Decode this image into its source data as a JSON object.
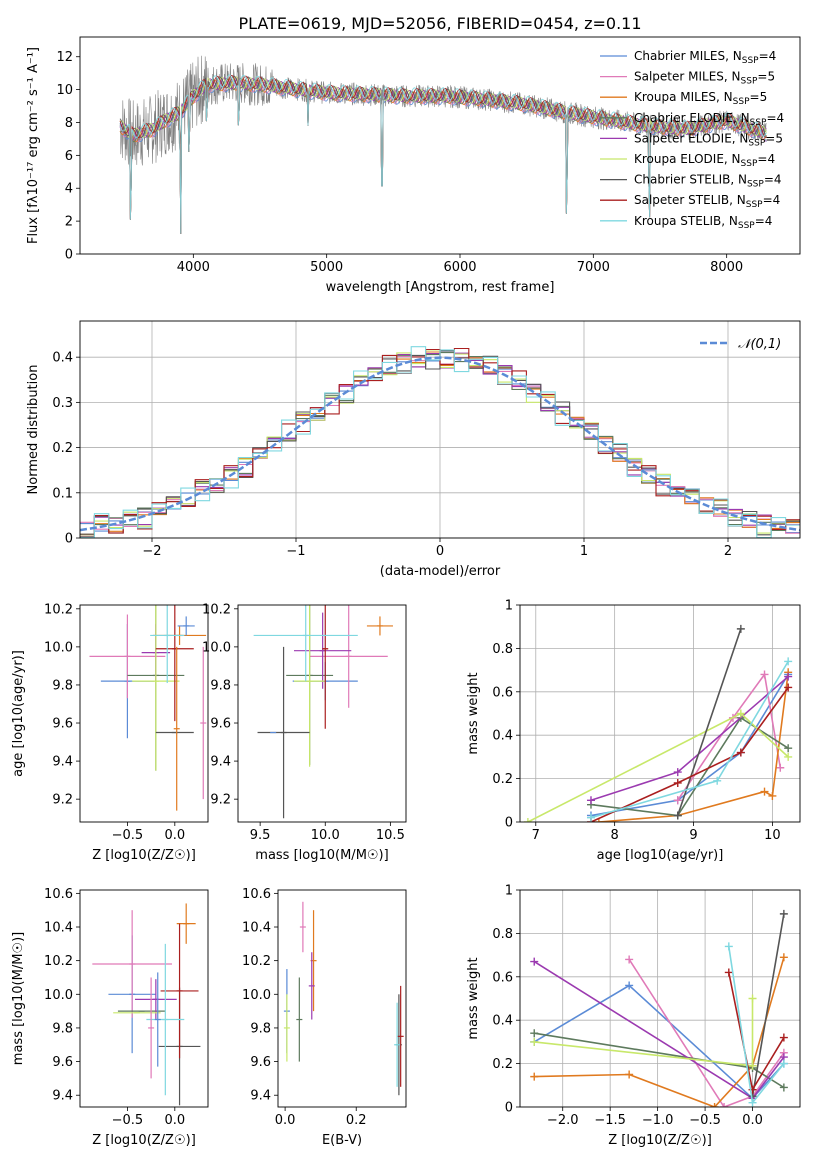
{
  "figure_title": "PLATE=0619, MJD=52056, FIBERID=0454, z=0.11",
  "colors": {
    "series": [
      "#5b8bd6",
      "#e07ab8",
      "#e07a1f",
      "#5d7a5d",
      "#9b3ab0",
      "#c8e86a",
      "#555555",
      "#aa1f1f",
      "#7fd8e0"
    ],
    "grid": "#b0b0b0",
    "axis": "#000000",
    "spectrum_gray": "#808080"
  },
  "legend_labels": [
    "Chabrier MILES, N_SSP=4",
    "Salpeter MILES, N_SSP=5",
    "Kroupa MILES, N_SSP=5",
    "Chabrier ELODIE, N_SSP=4",
    "Salpeter ELODIE, N_SSP=5",
    "Kroupa ELODIE, N_SSP=4",
    "Chabrier STELIB, N_SSP=4",
    "Salpeter STELIB, N_SSP=4",
    "Kroupa STELIB, N_SSP=4"
  ],
  "chart_data": [
    {
      "id": "spectrum",
      "type": "line",
      "title": "PLATE=0619, MJD=52056, FIBERID=0454, z=0.11",
      "xlabel": "wavelength [Angstrom, rest frame]",
      "ylabel": "Flux [fλ10⁻¹⁷ erg cm⁻² s⁻¹ A⁻¹]",
      "xlim": [
        3150,
        8550
      ],
      "ylim": [
        0,
        13.2
      ],
      "xticks": [
        4000,
        5000,
        6000,
        7000,
        8000
      ],
      "yticks": [
        0,
        2,
        4,
        6,
        8,
        10,
        12
      ],
      "grid": false,
      "legend_position": "top-right",
      "continuum": {
        "x": [
          3450,
          3550,
          3700,
          3800,
          3900,
          4000,
          4100,
          4300,
          4500,
          4700,
          5000,
          5300,
          5600,
          5900,
          6200,
          6500,
          6800,
          7100,
          7400,
          7700,
          8000,
          8300
        ],
        "y": [
          7.8,
          7.2,
          7.6,
          8.2,
          8.6,
          9.6,
          10.3,
          10.4,
          10.3,
          10.1,
          9.8,
          9.7,
          9.6,
          9.6,
          9.4,
          9.1,
          8.6,
          8.2,
          7.8,
          7.6,
          8.1,
          7.3
        ]
      },
      "dips": [
        {
          "x": 3530,
          "y": 0
        },
        {
          "x": 3905,
          "y": 0
        },
        {
          "x": 3968,
          "y": 5.0
        },
        {
          "x": 4100,
          "y": 7.2
        },
        {
          "x": 4340,
          "y": 6.8
        },
        {
          "x": 4860,
          "y": 7.8
        },
        {
          "x": 5415,
          "y": 0
        },
        {
          "x": 6800,
          "y": 0
        },
        {
          "x": 7420,
          "y": 0
        }
      ]
    },
    {
      "id": "residuals",
      "type": "line",
      "xlabel": "(data-model)/error",
      "ylabel": "Normed distribution",
      "xlim": [
        -2.5,
        2.5
      ],
      "ylim": [
        0,
        0.48
      ],
      "xticks": [
        -2,
        -1,
        0,
        1,
        2
      ],
      "yticks": [
        0.0,
        0.1,
        0.2,
        0.3,
        0.4
      ],
      "grid": true,
      "legend_position": "top-right",
      "gauss_label": "𝒩(0,1)",
      "bin_edges": [
        -2.5,
        -2.4,
        -2.3,
        -2.2,
        -2.1,
        -2.0,
        -1.9,
        -1.8,
        -1.7,
        -1.6,
        -1.5,
        -1.4,
        -1.3,
        -1.2,
        -1.1,
        -1.0,
        -0.9,
        -0.8,
        -0.7,
        -0.6,
        -0.5,
        -0.4,
        -0.3,
        -0.2,
        -0.1,
        0.0,
        0.1,
        0.2,
        0.3,
        0.4,
        0.5,
        0.6,
        0.7,
        0.8,
        0.9,
        1.0,
        1.1,
        1.2,
        1.3,
        1.4,
        1.5,
        1.6,
        1.7,
        1.8,
        1.9,
        2.0,
        2.1,
        2.2,
        2.3,
        2.4,
        2.5
      ],
      "hist_jitter": [
        0.012,
        -0.01,
        0.006,
        -0.014,
        0.009,
        0.004,
        -0.008,
        0.013,
        -0.005,
        0.01,
        -0.012,
        0.007,
        -0.003,
        0.011,
        -0.009,
        0.005,
        -0.013,
        0.008,
        0.002,
        -0.006,
        0.014,
        -0.011,
        0.003,
        0.009,
        -0.007,
        0.012,
        -0.004,
        0.006,
        -0.01,
        0.013,
        -0.002,
        0.008,
        -0.012,
        0.004,
        0.011,
        -0.009,
        0.007,
        -0.005,
        0.01,
        -0.013,
        0.003,
        0.009,
        -0.006,
        0.012,
        -0.011,
        0.005,
        0.008,
        -0.003,
        0.01,
        -0.008
      ]
    },
    {
      "id": "age-vs-Z",
      "type": "scatter",
      "xlabel": "Z [log10(Z/Z☉)]",
      "ylabel": "age  [log10(age/yr)]",
      "xlim": [
        -1.0,
        0.35
      ],
      "ylim": [
        9.08,
        10.22
      ],
      "xticks": [
        -0.5,
        0.0
      ],
      "xticklabels": [
        "−0.5",
        "0.0"
      ],
      "yticks": [
        9.2,
        9.4,
        9.6,
        9.8,
        10.0,
        10.2
      ],
      "yticklabels": [
        "9.2",
        "9.4",
        "9.6",
        "9.8",
        "10.0",
        "10.2"
      ],
      "points": [
        {
          "x": -0.5,
          "xerr": 0.28,
          "y": 9.82,
          "yerr": 0.3
        },
        {
          "x": -0.5,
          "xerr": 0.4,
          "y": 9.95,
          "yerr": 0.22
        },
        {
          "x": 0.05,
          "xerr": 0.28,
          "y": 10.06,
          "yerr": 0.05
        },
        {
          "x": -0.2,
          "xerr": 0.3,
          "y": 9.85,
          "yerr": 0.5
        },
        {
          "x": -0.2,
          "xerr": 0.15,
          "y": 9.97,
          "yerr": 0.15
        },
        {
          "x": -0.2,
          "xerr": 0.25,
          "y": 9.82,
          "yerr": 0.47
        },
        {
          "x": 0.0,
          "xerr": 0.2,
          "y": 9.55,
          "yerr": 0.0
        },
        {
          "x": 0.0,
          "xerr": 0.2,
          "y": 9.99,
          "yerr": 0.38
        },
        {
          "x": -0.08,
          "xerr": 0.18,
          "y": 10.06,
          "yerr": 0.25
        },
        {
          "x": 0.12,
          "xerr": 0.09,
          "y": 10.11,
          "yerr": 0.05
        },
        {
          "x": 0.3,
          "xerr": 0.0,
          "y": 9.6,
          "yerr": 0.4
        },
        {
          "x": 0.02,
          "xerr": 0.0,
          "y": 9.57,
          "yerr": 0.43
        }
      ]
    },
    {
      "id": "age-vs-mass",
      "type": "scatter",
      "xlabel": "mass [log10(M/M☉)]",
      "ylabel": "",
      "xlim": [
        9.33,
        10.62
      ],
      "ylim": [
        9.08,
        10.22
      ],
      "xticks": [
        9.5,
        10.0,
        10.5
      ],
      "xticklabels": [
        "9.5",
        "10.0",
        "10.5"
      ],
      "yticks": [
        9.2,
        9.4,
        9.6,
        9.8,
        10.0,
        10.2
      ],
      "yticklabels": [
        "9.2",
        "9.4",
        "9.6",
        "9.8",
        "10.0",
        "10.2"
      ],
      "points": [
        {
          "x": 10.0,
          "xerr": 0.25,
          "y": 9.82,
          "yerr": 0.1
        },
        {
          "x": 10.18,
          "xerr": 0.3,
          "y": 9.95,
          "yerr": 0.27
        },
        {
          "x": 10.42,
          "xerr": 0.1,
          "y": 10.11,
          "yerr": 0.05
        },
        {
          "x": 9.88,
          "xerr": 0.18,
          "y": 9.85,
          "yerr": 0.47
        },
        {
          "x": 9.98,
          "xerr": 0.22,
          "y": 9.98,
          "yerr": 0.2
        },
        {
          "x": 9.88,
          "xerr": 0.12,
          "y": 9.82,
          "yerr": 0.45
        },
        {
          "x": 9.68,
          "xerr": 0.2,
          "y": 9.55,
          "yerr": 0.45
        },
        {
          "x": 10.0,
          "xerr": 0.02,
          "y": 9.99,
          "yerr": 0.42
        },
        {
          "x": 9.85,
          "xerr": 0.4,
          "y": 10.06,
          "yerr": 0.24
        },
        {
          "x": 9.6,
          "xerr": 0.0,
          "y": 9.55,
          "yerr": 0.0
        }
      ]
    },
    {
      "id": "weight-vs-age",
      "type": "line",
      "xlabel": "age  [log10(age/yr)]",
      "ylabel": "mass weight",
      "xlim": [
        6.8,
        10.35
      ],
      "ylim": [
        0,
        1.0
      ],
      "xticks": [
        7,
        8,
        9,
        10
      ],
      "yticks": [
        0.0,
        0.2,
        0.4,
        0.6,
        0.8,
        1.0
      ],
      "grid": true,
      "series": [
        {
          "x": [
            7.7,
            8.8,
            9.6,
            10.2
          ],
          "y": [
            0.03,
            0.1,
            0.32,
            0.68
          ]
        },
        {
          "x": [
            8.8,
            9.5,
            9.9,
            10.1
          ],
          "y": [
            0.1,
            0.48,
            0.68,
            0.25
          ]
        },
        {
          "x": [
            7.8,
            8.8,
            9.9,
            10.0,
            10.2
          ],
          "y": [
            0.0,
            0.03,
            0.14,
            0.12,
            0.69
          ]
        },
        {
          "x": [
            7.7,
            8.8,
            9.6,
            10.2
          ],
          "y": [
            0.08,
            0.03,
            0.48,
            0.34
          ]
        },
        {
          "x": [
            7.7,
            8.8,
            10.2
          ],
          "y": [
            0.1,
            0.23,
            0.67
          ]
        },
        {
          "x": [
            6.9,
            9.6,
            10.2
          ],
          "y": [
            0.0,
            0.5,
            0.3
          ]
        },
        {
          "x": [
            8.8,
            9.6
          ],
          "y": [
            0.03,
            0.89
          ]
        },
        {
          "x": [
            7.7,
            8.8,
            9.6,
            10.2
          ],
          "y": [
            0.0,
            0.18,
            0.32,
            0.62
          ]
        },
        {
          "x": [
            7.7,
            9.3,
            10.2
          ],
          "y": [
            0.02,
            0.19,
            0.74
          ]
        }
      ]
    },
    {
      "id": "mass-vs-Z",
      "type": "scatter",
      "xlabel": "Z [log10(Z/Z☉)]",
      "ylabel": "mass [log10(M/M☉)]",
      "xlim": [
        -1.0,
        0.35
      ],
      "ylim": [
        9.33,
        10.62
      ],
      "xticks": [
        -0.5,
        0.0
      ],
      "xticklabels": [
        "−0.5",
        "0.0"
      ],
      "yticks": [
        9.4,
        9.6,
        9.8,
        10.0,
        10.2,
        10.4,
        10.6
      ],
      "yticklabels": [
        "9.4",
        "9.6",
        "9.8",
        "10.0",
        "10.2",
        "10.4",
        "10.6"
      ],
      "points": [
        {
          "x": -0.45,
          "xerr": 0.25,
          "y": 10.0,
          "yerr": 0.35
        },
        {
          "x": -0.45,
          "xerr": 0.42,
          "y": 10.18,
          "yerr": 0.32
        },
        {
          "x": 0.12,
          "xerr": 0.1,
          "y": 10.42,
          "yerr": 0.12
        },
        {
          "x": -0.35,
          "xerr": 0.25,
          "y": 9.9,
          "yerr": 0.0
        },
        {
          "x": -0.2,
          "xerr": 0.22,
          "y": 9.97,
          "yerr": 0.12
        },
        {
          "x": -0.4,
          "xerr": 0.25,
          "y": 9.89,
          "yerr": 0.0
        },
        {
          "x": 0.05,
          "xerr": 0.22,
          "y": 9.69,
          "yerr": 0.35
        },
        {
          "x": 0.05,
          "xerr": 0.2,
          "y": 10.02,
          "yerr": 0.4
        },
        {
          "x": -0.1,
          "xerr": 0.2,
          "y": 9.85,
          "yerr": 0.45
        },
        {
          "x": -0.18,
          "xerr": 0.0,
          "y": 9.85,
          "yerr": 0.28
        },
        {
          "x": -0.25,
          "xerr": 0.0,
          "y": 9.8,
          "yerr": 0.3
        }
      ]
    },
    {
      "id": "mass-vs-EBV",
      "type": "scatter",
      "xlabel": "E(B-V)",
      "ylabel": "",
      "xlim": [
        -0.02,
        0.34
      ],
      "ylim": [
        9.33,
        10.62
      ],
      "xticks": [
        0.0,
        0.2
      ],
      "xticklabels": [
        "0.0",
        "0.2"
      ],
      "yticks": [
        9.4,
        9.6,
        9.8,
        10.0,
        10.2,
        10.4,
        10.6
      ],
      "yticklabels": [
        "9.4",
        "9.6",
        "9.8",
        "10.0",
        "10.2",
        "10.4",
        "10.6"
      ],
      "points": [
        {
          "x": 0.005,
          "xerr": 0.0,
          "y": 9.9,
          "yerr": 0.25
        },
        {
          "x": 0.05,
          "xerr": 0.0,
          "y": 10.4,
          "yerr": 0.15
        },
        {
          "x": 0.08,
          "xerr": 0.0,
          "y": 10.2,
          "yerr": 0.3
        },
        {
          "x": 0.04,
          "xerr": 0.0,
          "y": 9.85,
          "yerr": 0.25
        },
        {
          "x": 0.075,
          "xerr": 0.0,
          "y": 10.05,
          "yerr": 0.2
        },
        {
          "x": 0.005,
          "xerr": 0.0,
          "y": 9.8,
          "yerr": 0.2
        },
        {
          "x": 0.32,
          "xerr": 0.0,
          "y": 9.7,
          "yerr": 0.3
        },
        {
          "x": 0.325,
          "xerr": 0.0,
          "y": 9.75,
          "yerr": 0.3
        },
        {
          "x": 0.315,
          "xerr": 0.0,
          "y": 9.7,
          "yerr": 0.25
        }
      ]
    },
    {
      "id": "weight-vs-Z",
      "type": "line",
      "xlabel": "Z [log10(Z/Z☉)]",
      "ylabel": "mass weight",
      "xlim": [
        -2.45,
        0.5
      ],
      "ylim": [
        0,
        1.0
      ],
      "xticks": [
        -2.0,
        -1.5,
        -1.0,
        -0.5,
        0.0
      ],
      "xticklabels": [
        "−2.0",
        "−1.5",
        "−1.0",
        "−0.5",
        "0.0"
      ],
      "yticks": [
        0.0,
        0.2,
        0.4,
        0.6,
        0.8,
        1.0
      ],
      "grid": true,
      "series": [
        {
          "x": [
            -2.3,
            -1.3,
            0.0,
            0.33
          ],
          "y": [
            0.3,
            0.56,
            0.04,
            0.2
          ]
        },
        {
          "x": [
            -1.3,
            -0.3,
            0.0,
            0.33
          ],
          "y": [
            0.68,
            0.0,
            0.05,
            0.25
          ]
        },
        {
          "x": [
            -2.3,
            -1.3,
            -0.4,
            0.0,
            0.33
          ],
          "y": [
            0.14,
            0.15,
            0.0,
            0.19,
            0.69
          ]
        },
        {
          "x": [
            -2.3,
            0.0,
            0.33
          ],
          "y": [
            0.34,
            0.18,
            0.09
          ]
        },
        {
          "x": [
            -2.3,
            0.0,
            0.33
          ],
          "y": [
            0.67,
            0.04,
            0.23
          ]
        },
        {
          "x": [
            -2.3,
            0.0,
            0.0
          ],
          "y": [
            0.3,
            0.19,
            0.5
          ]
        },
        {
          "x": [
            0.0,
            0.33
          ],
          "y": [
            0.05,
            0.89
          ]
        },
        {
          "x": [
            -0.25,
            0.0,
            0.33
          ],
          "y": [
            0.62,
            0.08,
            0.32
          ]
        },
        {
          "x": [
            -0.25,
            0.0,
            0.33
          ],
          "y": [
            0.74,
            0.02,
            0.2
          ]
        }
      ]
    }
  ]
}
